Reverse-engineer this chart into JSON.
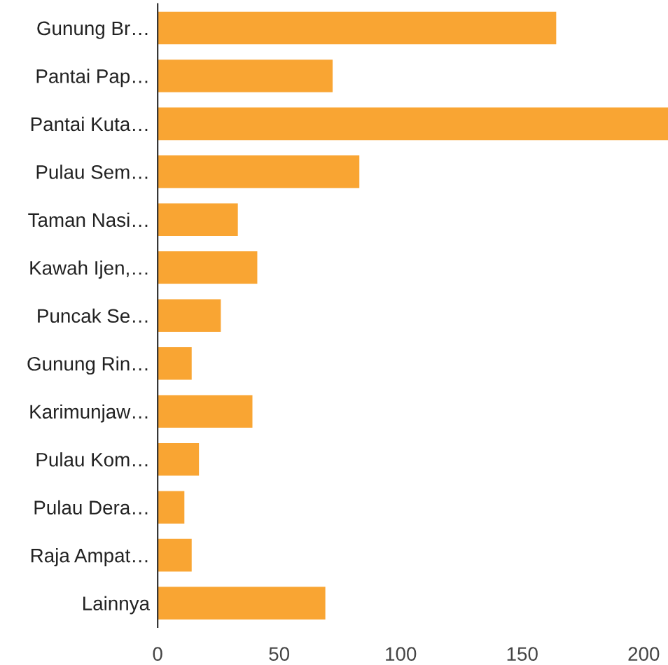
{
  "chart_data": {
    "type": "bar",
    "orientation": "horizontal",
    "categories": [
      "Gunung Br…",
      "Pantai Pap…",
      "Pantai Kuta…",
      "Pulau Sem…",
      "Taman Nasi…",
      "Kawah Ijen,…",
      "Puncak Se…",
      "Gunung Rin…",
      "Karimunjaw…",
      "Pulau Kom…",
      "Pulau Dera…",
      "Raja Ampat…",
      "Lainnya"
    ],
    "values": [
      164,
      72,
      210,
      83,
      33,
      41,
      26,
      14,
      39,
      17,
      11,
      14,
      69
    ],
    "color": "#f9a533",
    "xlim": [
      0,
      210
    ],
    "xticks": [
      0,
      50,
      100,
      150,
      200
    ],
    "grid": false
  }
}
